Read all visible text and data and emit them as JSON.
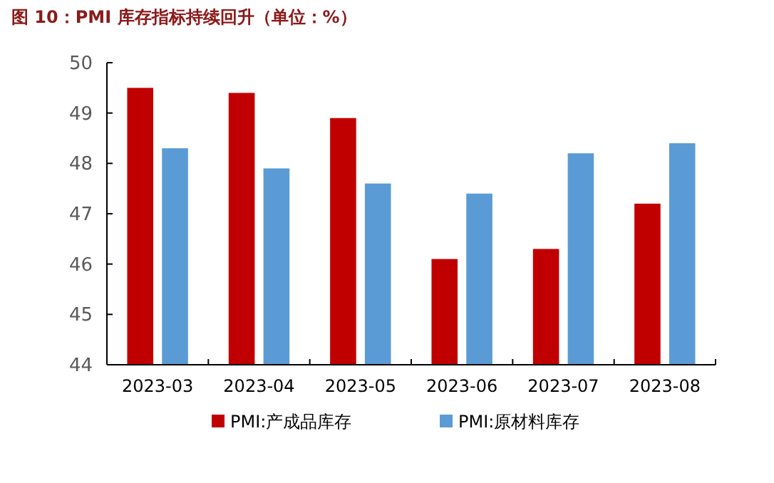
{
  "chart_data": {
    "type": "bar",
    "title": "图 10：PMI 库存指标持续回升（单位：%）",
    "categories": [
      "2023-03",
      "2023-04",
      "2023-05",
      "2023-06",
      "2023-07",
      "2023-08"
    ],
    "series": [
      {
        "name": "PMI:产成品库存",
        "color": "#c00000",
        "values": [
          49.5,
          49.4,
          48.9,
          46.1,
          46.3,
          47.2
        ]
      },
      {
        "name": "PMI:原材料库存",
        "color": "#5b9bd5",
        "values": [
          48.3,
          47.9,
          47.6,
          47.4,
          48.2,
          48.4
        ]
      }
    ],
    "ylim": [
      44,
      50
    ],
    "yticks": [
      44,
      45,
      46,
      47,
      48,
      49,
      50
    ],
    "grid": false,
    "legend": "bottom"
  }
}
